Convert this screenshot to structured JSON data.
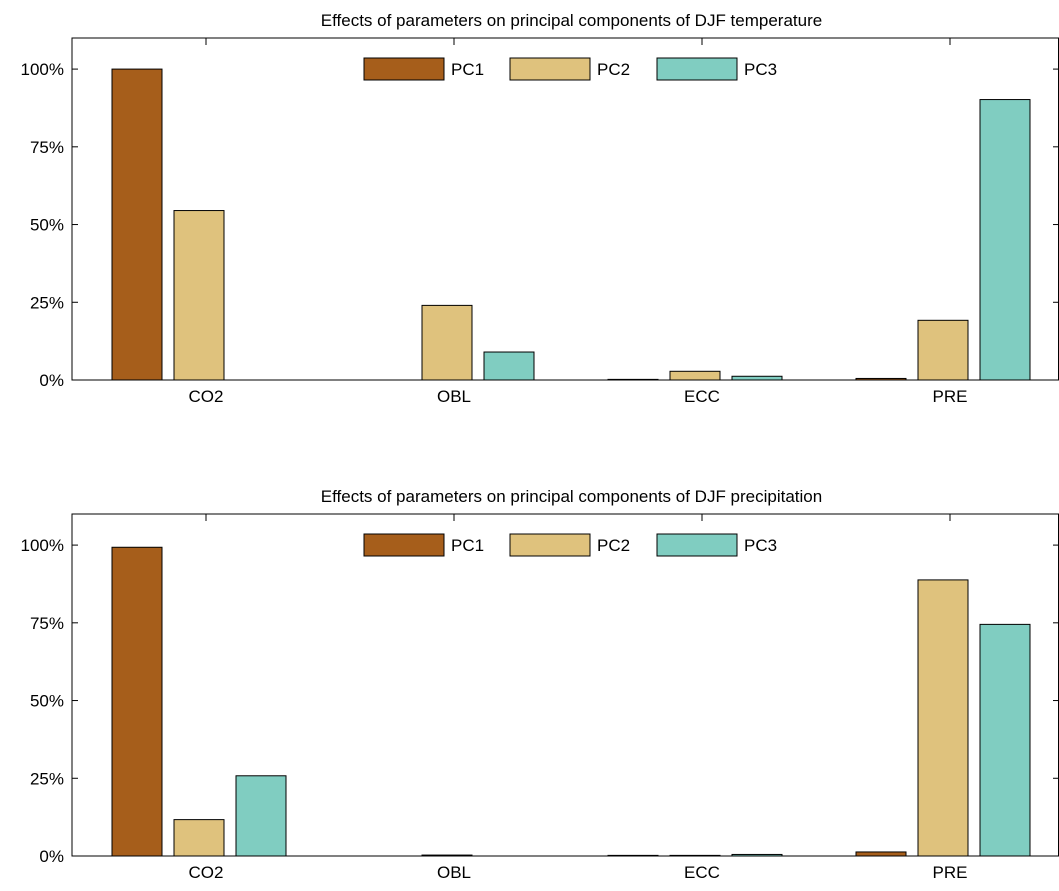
{
  "chart_data": [
    {
      "type": "bar",
      "title": "Effects of parameters on principal components of DJF temperature",
      "categories": [
        "CO2",
        "OBL",
        "ECC",
        "PRE"
      ],
      "series": [
        {
          "name": "PC1",
          "values": [
            100,
            0,
            0.2,
            0.5
          ]
        },
        {
          "name": "PC2",
          "values": [
            54.5,
            24,
            2.8,
            19.2
          ]
        },
        {
          "name": "PC3",
          "values": [
            0,
            9,
            1.2,
            90.2
          ]
        }
      ],
      "ylim": [
        0,
        110
      ],
      "yticks": [
        0,
        25,
        50,
        75,
        100
      ],
      "ytick_labels": [
        "0%",
        "25%",
        "50%",
        "75%",
        "100%"
      ],
      "xlabel": "",
      "ylabel": "",
      "legend": "top-center",
      "grid": false
    },
    {
      "type": "bar",
      "title": "Effects of parameters on principal components of DJF precipitation",
      "categories": [
        "CO2",
        "OBL",
        "ECC",
        "PRE"
      ],
      "series": [
        {
          "name": "PC1",
          "values": [
            99.3,
            0,
            0.2,
            1.3
          ]
        },
        {
          "name": "PC2",
          "values": [
            11.7,
            0.3,
            0.2,
            88.8
          ]
        },
        {
          "name": "PC3",
          "values": [
            25.8,
            0,
            0.5,
            74.5
          ]
        }
      ],
      "ylim": [
        0,
        110
      ],
      "yticks": [
        0,
        25,
        50,
        75,
        100
      ],
      "ytick_labels": [
        "0%",
        "25%",
        "50%",
        "75%",
        "100%"
      ],
      "xlabel": "",
      "ylabel": "",
      "legend": "top-center",
      "grid": false
    }
  ],
  "colors": {
    "PC1": "#a65e1b",
    "PC2": "#dfc27d",
    "PC3": "#80cdc1",
    "axis": "#000000"
  }
}
